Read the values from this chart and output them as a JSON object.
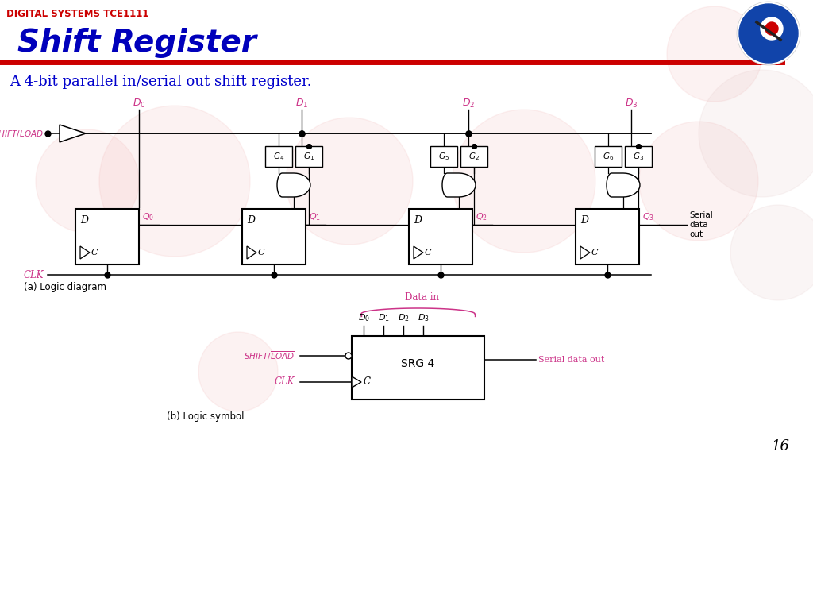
{
  "title_top": "DIGITAL SYSTEMS TCE1111",
  "title_main": "Shift Register",
  "subtitle": "A 4-bit parallel in/serial out shift register.",
  "caption_a": "(a) Logic diagram",
  "caption_b": "(b) Logic symbol",
  "page_number": "16",
  "colors": {
    "red_title": "#CC0000",
    "blue_main": "#0000BB",
    "blue_subtitle": "#0000CC",
    "magenta": "#CC3388",
    "black": "#000000",
    "white": "#FFFFFF",
    "bg": "#FFFFFF",
    "divider": "#CC0000"
  },
  "gate_pairs": [
    [
      "G_4",
      "G_1"
    ],
    [
      "G_5",
      "G_2"
    ],
    [
      "G_6",
      "G_3"
    ]
  ],
  "d_names": [
    "D_0",
    "D_1",
    "D_2",
    "D_3"
  ],
  "q_names": [
    "Q_0",
    "Q_1",
    "Q_2",
    "Q_3"
  ]
}
